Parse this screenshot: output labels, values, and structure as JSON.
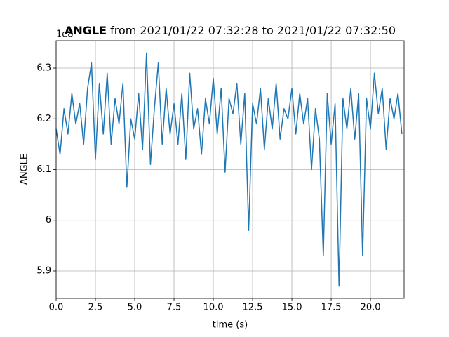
{
  "chart_data": {
    "type": "line",
    "title_bold": "ANGLE",
    "title": "from 2021/01/22 07:32:28 to 2021/01/22 07:32:50",
    "offset_text": "1e8",
    "xlabel": "time (s)",
    "ylabel": "ANGLE",
    "color": "#1f77b4",
    "grid": true,
    "xlim": [
      0,
      22.14
    ],
    "ylim": [
      5.846,
      6.354
    ],
    "xticks": [
      {
        "value": 0,
        "label": "0.0"
      },
      2.5,
      {
        "value": 5,
        "label": "5.0"
      },
      7.5,
      {
        "value": 10,
        "label": "10.0"
      },
      12.5,
      {
        "value": 15,
        "label": "15.0"
      },
      17.5,
      {
        "value": 20,
        "label": "20.0"
      }
    ],
    "yticks": [
      5.9,
      6.0,
      6.1,
      6.2,
      6.3
    ],
    "x": [
      0,
      0.25,
      0.5,
      0.75,
      1,
      1.25,
      1.5,
      1.75,
      2,
      2.25,
      2.5,
      2.75,
      3,
      3.25,
      3.5,
      3.75,
      4,
      4.25,
      4.5,
      4.75,
      5,
      5.25,
      5.5,
      5.75,
      6,
      6.25,
      6.5,
      6.75,
      7,
      7.25,
      7.5,
      7.75,
      8,
      8.25,
      8.5,
      8.75,
      9,
      9.25,
      9.5,
      9.75,
      10,
      10.25,
      10.5,
      10.75,
      11,
      11.25,
      11.5,
      11.75,
      12,
      12.25,
      12.5,
      12.75,
      13,
      13.25,
      13.5,
      13.75,
      14,
      14.25,
      14.5,
      14.75,
      15,
      15.25,
      15.5,
      15.75,
      16,
      16.25,
      16.5,
      16.75,
      17,
      17.25,
      17.5,
      17.75,
      18,
      18.25,
      18.5,
      18.75,
      19,
      19.25,
      19.5,
      19.75,
      20,
      20.25,
      20.5,
      20.75,
      21,
      21.25,
      21.5,
      21.75,
      22
    ],
    "values": [
      6.18,
      6.13,
      6.22,
      6.17,
      6.25,
      6.19,
      6.23,
      6.15,
      6.26,
      6.31,
      6.12,
      6.27,
      6.17,
      6.29,
      6.15,
      6.24,
      6.19,
      6.27,
      6.065,
      6.2,
      6.16,
      6.25,
      6.14,
      6.33,
      6.11,
      6.22,
      6.31,
      6.15,
      6.26,
      6.17,
      6.23,
      6.15,
      6.25,
      6.12,
      6.29,
      6.18,
      6.22,
      6.13,
      6.24,
      6.19,
      6.28,
      6.17,
      6.26,
      6.095,
      6.24,
      6.21,
      6.27,
      6.15,
      6.25,
      5.98,
      6.23,
      6.19,
      6.26,
      6.14,
      6.24,
      6.18,
      6.27,
      6.16,
      6.22,
      6.2,
      6.26,
      6.17,
      6.25,
      6.19,
      6.24,
      6.1,
      6.22,
      6.16,
      5.93,
      6.25,
      6.15,
      6.23,
      5.87,
      6.24,
      6.18,
      6.26,
      6.16,
      6.25,
      5.93,
      6.24,
      6.18,
      6.29,
      6.21,
      6.26,
      6.14,
      6.24,
      6.2,
      6.25,
      6.17
    ]
  }
}
